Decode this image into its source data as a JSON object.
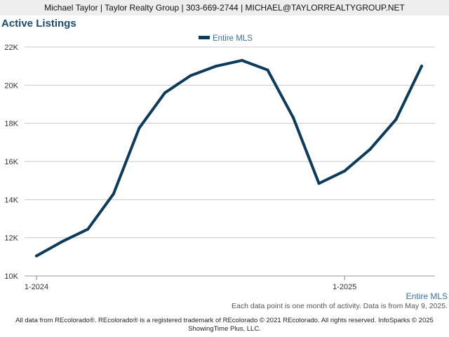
{
  "header": {
    "contact": "Michael Taylor | Taylor Realty Group | 303-669-2744 | MICHAEL@TAYLORREALTYGROUP.NET"
  },
  "chart_title": "Active Listings",
  "footer": {
    "note": "Each data point is one month of activity. Data is from May 9, 2025.",
    "legal_line1": "All data from REcolorado®. REcolorado® is a registered trademark of REcolorado © 2021 REcolorado. All rights reserved. InfoSparks © 2025",
    "legal_line2": "ShowingTime Plus, LLC."
  },
  "colors": {
    "series": "#0d3b5c",
    "grid": "#c8c8c8",
    "axis_text": "#333333",
    "accent_text": "#3a6ea5"
  },
  "chart_data": {
    "type": "line",
    "title": "Active Listings",
    "xlabel": "",
    "ylabel": "",
    "ylim": [
      10000,
      22000
    ],
    "yticks": [
      {
        "value": 10000,
        "label": "10K"
      },
      {
        "value": 12000,
        "label": "12K"
      },
      {
        "value": 14000,
        "label": "14K"
      },
      {
        "value": 16000,
        "label": "16K"
      },
      {
        "value": 18000,
        "label": "18K"
      },
      {
        "value": 20000,
        "label": "20K"
      },
      {
        "value": 22000,
        "label": "22K"
      }
    ],
    "xticks": [
      {
        "index": 0,
        "label": "1-2024"
      },
      {
        "index": 12,
        "label": "1-2025"
      }
    ],
    "x": [
      "2024-01",
      "2024-02",
      "2024-03",
      "2024-04",
      "2024-05",
      "2024-06",
      "2024-07",
      "2024-08",
      "2024-09",
      "2024-10",
      "2024-11",
      "2024-12",
      "2025-01",
      "2025-02",
      "2025-03",
      "2025-04"
    ],
    "series": [
      {
        "name": "Entire MLS",
        "end_label": "Entire MLS",
        "values": [
          11050,
          11800,
          12450,
          14300,
          17750,
          19600,
          20500,
          21000,
          21300,
          20800,
          18300,
          14850,
          15500,
          16650,
          18200,
          21000
        ]
      }
    ],
    "legend": "top-center",
    "grid": true
  }
}
